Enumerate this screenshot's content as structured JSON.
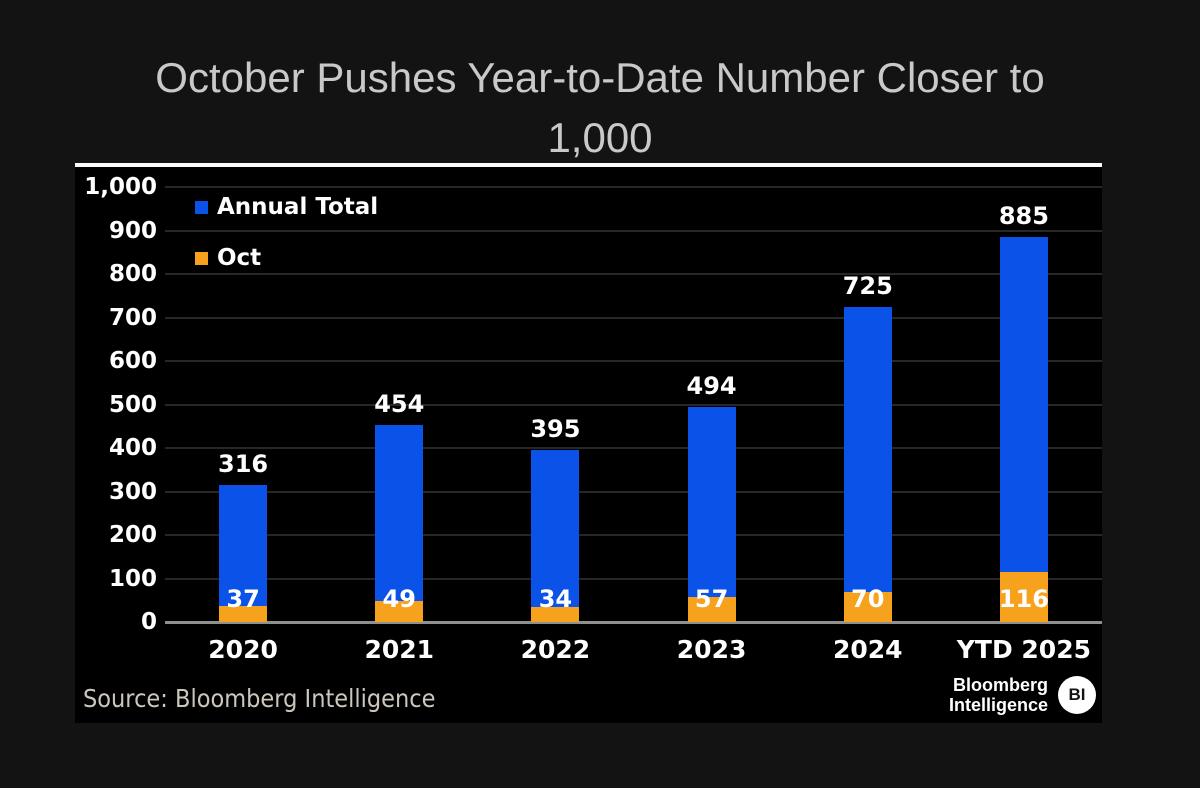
{
  "header": {
    "title_line1": "October Pushes Year-to-Date Number Closer to",
    "title_line2": "1,000"
  },
  "chart_data": {
    "type": "bar",
    "title": "October Pushes Year-to-Date Number Closer to 1,000",
    "categories": [
      "2020",
      "2021",
      "2022",
      "2023",
      "2024",
      "YTD 2025"
    ],
    "series": [
      {
        "name": "Annual Total",
        "color": "#0b52e8",
        "values": [
          316,
          454,
          395,
          494,
          725,
          885
        ]
      },
      {
        "name": "Oct",
        "color": "#f6a21d",
        "values": [
          37,
          49,
          34,
          57,
          70,
          116
        ]
      }
    ],
    "ylim": [
      0,
      1000
    ],
    "yticks": [
      0,
      100,
      200,
      300,
      400,
      500,
      600,
      700,
      800,
      900,
      1000
    ],
    "grid": "horizontal",
    "legend_position": "top-left",
    "xlabel": "",
    "ylabel": ""
  },
  "footer": {
    "source": "Source: Bloomberg Intelligence",
    "logo_line1": "Bloomberg",
    "logo_line2": "Intelligence",
    "logo_badge": "BI"
  },
  "colors": {
    "background": "#131313",
    "panel": "#000000",
    "annual_total": "#0b52e8",
    "oct": "#f6a21d",
    "gridline": "#272727",
    "axis_line": "#8f8f8f",
    "title_text": "#c9c9c9",
    "chart_text": "#ffffff",
    "source_text": "#cdc6bd"
  }
}
